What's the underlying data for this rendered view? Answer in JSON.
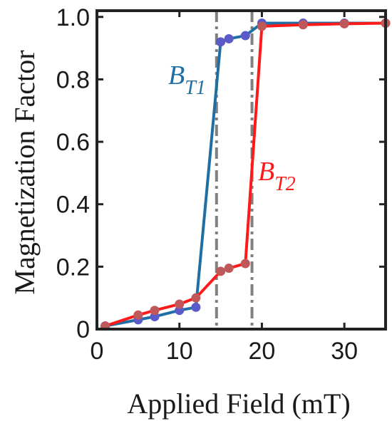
{
  "chart_data": {
    "type": "line",
    "title": "",
    "xlabel": "Applied Field (mT)",
    "ylabel": "Magnetization Factor",
    "xlim": [
      0,
      35
    ],
    "ylim": [
      0,
      1.02
    ],
    "xticks": [
      0,
      10,
      20,
      30
    ],
    "yticks": [
      0,
      0.2,
      0.4,
      0.6,
      0.8,
      1.0
    ],
    "xtick_labels": [
      "0",
      "10",
      "20",
      "30"
    ],
    "ytick_labels": [
      "0",
      "0.2",
      "0.4",
      "0.6",
      "0.8",
      "1.0"
    ],
    "grid": false,
    "legend": "none",
    "series": [
      {
        "label_main": "B",
        "label_sub": "T1",
        "line_color": "#1f6fa5",
        "marker_color": "#5a5ac8",
        "x": [
          1,
          5,
          7,
          10,
          12,
          15,
          16,
          18,
          20,
          25,
          30,
          35
        ],
        "y": [
          0.01,
          0.03,
          0.04,
          0.06,
          0.07,
          0.92,
          0.93,
          0.94,
          0.98,
          0.98,
          0.98,
          0.98
        ]
      },
      {
        "label_main": "B",
        "label_sub": "T2",
        "line_color": "#ff1a1a",
        "marker_color": "#c0585a",
        "x": [
          1,
          5,
          7,
          10,
          12,
          15,
          16,
          18,
          20,
          25,
          30,
          35
        ],
        "y": [
          0.01,
          0.045,
          0.06,
          0.08,
          0.1,
          0.185,
          0.195,
          0.21,
          0.97,
          0.975,
          0.978,
          0.98
        ]
      }
    ],
    "reference_lines": [
      {
        "x": 14.5,
        "color": "#808080",
        "style": "dash-dot"
      },
      {
        "x": 18.8,
        "color": "#808080",
        "style": "dash-dot"
      }
    ]
  }
}
